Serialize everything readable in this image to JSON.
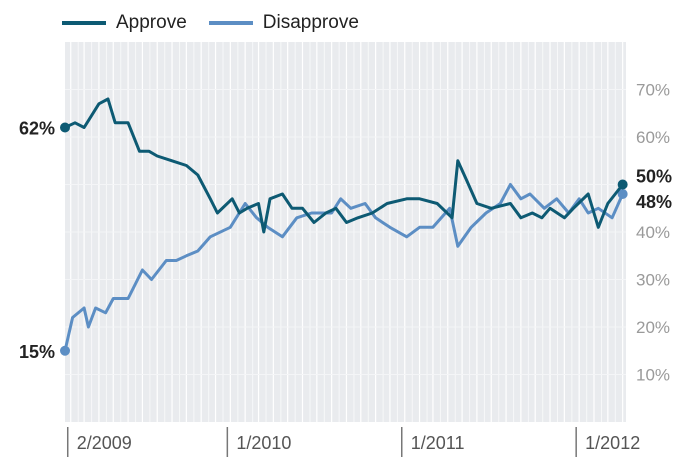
{
  "chart_data": {
    "type": "line",
    "xlabel": "",
    "ylabel": "",
    "ylim": [
      0,
      80
    ],
    "xlim": [
      "2009-01",
      "2012-04"
    ],
    "grid": true,
    "legend_position": "top-left",
    "y_ticks": [
      {
        "value": 10,
        "label": "10%"
      },
      {
        "value": 20,
        "label": "20%"
      },
      {
        "value": 30,
        "label": "30%"
      },
      {
        "value": 40,
        "label": "40%"
      },
      {
        "value": 50,
        "label": "50%"
      },
      {
        "value": 60,
        "label": "60%"
      },
      {
        "value": 70,
        "label": "70%"
      }
    ],
    "x_ticks": [
      {
        "date": "2009-02",
        "label": "2/2009"
      },
      {
        "date": "2010-01",
        "label": "1/2010"
      },
      {
        "date": "2011-01",
        "label": "1/2011"
      },
      {
        "date": "2012-01",
        "label": "1/2012"
      }
    ],
    "series": [
      {
        "name": "Approve",
        "color": "#0d5a73",
        "start_label": "62%",
        "end_label": "50%",
        "points": [
          [
            "2009-01-20",
            62
          ],
          [
            "2009-02-10",
            63
          ],
          [
            "2009-03-01",
            62
          ],
          [
            "2009-04-01",
            67
          ],
          [
            "2009-04-20",
            68
          ],
          [
            "2009-05-05",
            63
          ],
          [
            "2009-06-01",
            63
          ],
          [
            "2009-06-25",
            57
          ],
          [
            "2009-07-15",
            57
          ],
          [
            "2009-08-01",
            56
          ],
          [
            "2009-09-01",
            55
          ],
          [
            "2009-10-01",
            54
          ],
          [
            "2009-10-25",
            52
          ],
          [
            "2009-11-20",
            47
          ],
          [
            "2009-12-05",
            44
          ],
          [
            "2010-01-05",
            47
          ],
          [
            "2010-01-20",
            44
          ],
          [
            "2010-02-05",
            45
          ],
          [
            "2010-03-01",
            46
          ],
          [
            "2010-03-12",
            40
          ],
          [
            "2010-03-25",
            47
          ],
          [
            "2010-04-20",
            48
          ],
          [
            "2010-05-10",
            45
          ],
          [
            "2010-06-01",
            45
          ],
          [
            "2010-06-25",
            42
          ],
          [
            "2010-07-20",
            44
          ],
          [
            "2010-08-10",
            45
          ],
          [
            "2010-09-01",
            42
          ],
          [
            "2010-09-25",
            43
          ],
          [
            "2010-10-25",
            44
          ],
          [
            "2010-11-25",
            46
          ],
          [
            "2011-01-05",
            47
          ],
          [
            "2011-02-01",
            47
          ],
          [
            "2011-03-10",
            46
          ],
          [
            "2011-04-10",
            43
          ],
          [
            "2011-04-22",
            55
          ],
          [
            "2011-05-10",
            51
          ],
          [
            "2011-06-01",
            46
          ],
          [
            "2011-07-01",
            45
          ],
          [
            "2011-08-10",
            46
          ],
          [
            "2011-09-01",
            43
          ],
          [
            "2011-09-25",
            44
          ],
          [
            "2011-10-15",
            43
          ],
          [
            "2011-11-01",
            45
          ],
          [
            "2011-12-01",
            43
          ],
          [
            "2011-12-20",
            45
          ],
          [
            "2012-01-20",
            48
          ],
          [
            "2012-02-10",
            41
          ],
          [
            "2012-03-01",
            46
          ],
          [
            "2012-04-01",
            50
          ]
        ]
      },
      {
        "name": "Disapprove",
        "color": "#5c8ec4",
        "start_label": "15%",
        "end_label": "48%",
        "points": [
          [
            "2009-01-20",
            15
          ],
          [
            "2009-02-05",
            22
          ],
          [
            "2009-03-01",
            24
          ],
          [
            "2009-03-10",
            20
          ],
          [
            "2009-03-25",
            24
          ],
          [
            "2009-04-15",
            23
          ],
          [
            "2009-05-01",
            26
          ],
          [
            "2009-06-01",
            26
          ],
          [
            "2009-07-01",
            32
          ],
          [
            "2009-07-20",
            30
          ],
          [
            "2009-08-20",
            34
          ],
          [
            "2009-09-10",
            34
          ],
          [
            "2009-10-01",
            35
          ],
          [
            "2009-10-25",
            36
          ],
          [
            "2009-11-20",
            39
          ],
          [
            "2010-01-01",
            41
          ],
          [
            "2010-02-01",
            46
          ],
          [
            "2010-02-25",
            43
          ],
          [
            "2010-03-20",
            41
          ],
          [
            "2010-04-20",
            39
          ],
          [
            "2010-05-20",
            43
          ],
          [
            "2010-06-20",
            44
          ],
          [
            "2010-08-01",
            44
          ],
          [
            "2010-08-20",
            47
          ],
          [
            "2010-09-10",
            45
          ],
          [
            "2010-10-10",
            46
          ],
          [
            "2010-11-01",
            43
          ],
          [
            "2010-12-01",
            41
          ],
          [
            "2011-01-05",
            39
          ],
          [
            "2011-02-01",
            41
          ],
          [
            "2011-03-01",
            41
          ],
          [
            "2011-04-05",
            45
          ],
          [
            "2011-04-22",
            37
          ],
          [
            "2011-05-20",
            41
          ],
          [
            "2011-06-20",
            44
          ],
          [
            "2011-07-20",
            46
          ],
          [
            "2011-08-10",
            50
          ],
          [
            "2011-09-01",
            47
          ],
          [
            "2011-09-20",
            48
          ],
          [
            "2011-10-20",
            45
          ],
          [
            "2011-11-15",
            47
          ],
          [
            "2011-12-10",
            44
          ],
          [
            "2012-01-01",
            47
          ],
          [
            "2012-01-20",
            44
          ],
          [
            "2012-02-10",
            45
          ],
          [
            "2012-03-10",
            43
          ],
          [
            "2012-04-01",
            48
          ]
        ]
      }
    ]
  }
}
